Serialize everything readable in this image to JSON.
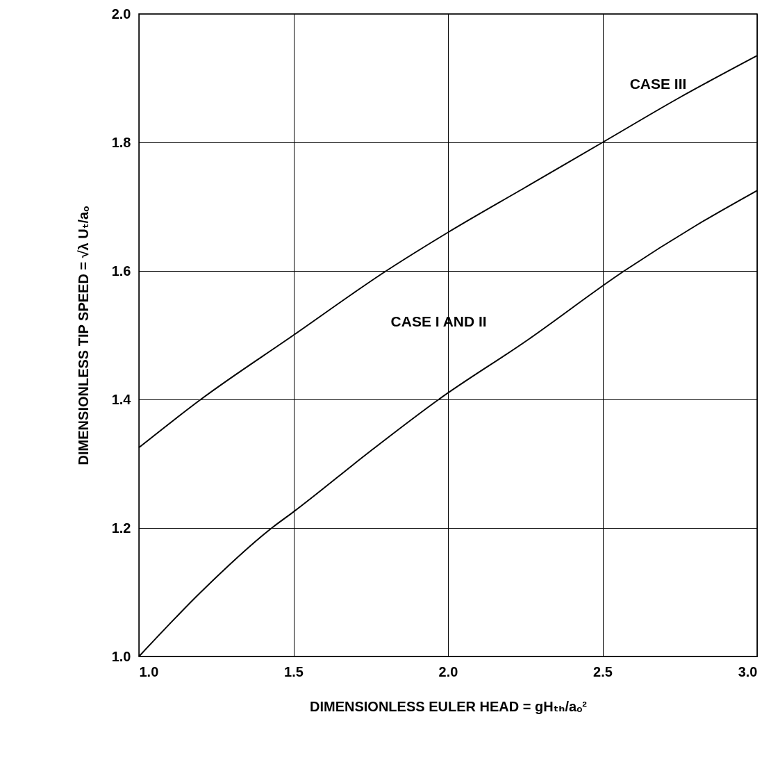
{
  "chart_data": {
    "type": "line",
    "xlabel": "DIMENSIONLESS EULER HEAD = gHₜₕ/aₒ²",
    "ylabel": "DIMENSIONLESS TIP SPEED = √λ Uₜ/aₒ",
    "xlim": [
      1.0,
      3.0
    ],
    "ylim": [
      1.0,
      2.0
    ],
    "xticks": [
      {
        "value": 1,
        "label": "1.0"
      },
      1.5,
      {
        "value": 2,
        "label": "2.0"
      },
      2.5,
      {
        "value": 3,
        "label": "3.0"
      }
    ],
    "yticks": [
      {
        "value": 1,
        "label": "1.0"
      },
      1.2,
      1.4,
      1.6,
      1.8,
      {
        "value": 2,
        "label": "2.0"
      }
    ],
    "grid": true,
    "marker": "none",
    "line_style": "solid",
    "legend": false,
    "series": [
      {
        "name": "CASE III",
        "color": "#000000",
        "x": [
          1.0,
          1.2,
          1.5,
          1.8,
          2.0,
          2.25,
          2.5,
          2.75,
          3.0
        ],
        "values": [
          1.325,
          1.4,
          1.5,
          1.6,
          1.66,
          1.73,
          1.8,
          1.87,
          1.935
        ]
      },
      {
        "name": "CASE I AND II",
        "color": "#000000",
        "x": [
          1.0,
          1.2,
          1.43,
          1.5,
          1.75,
          1.97,
          2.25,
          2.57,
          2.8,
          3.0
        ],
        "values": [
          1.0,
          1.1,
          1.2,
          1.225,
          1.32,
          1.4,
          1.49,
          1.6,
          1.67,
          1.725
        ]
      }
    ]
  }
}
